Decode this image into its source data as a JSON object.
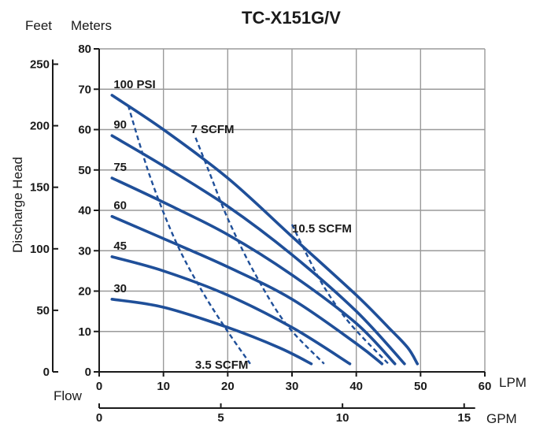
{
  "chart_data": {
    "type": "line",
    "title": "TC-X151G/V",
    "xlabel": "Flow",
    "ylabel": "Discharge Head",
    "x_unit_primary": "LPM",
    "x_unit_secondary": "GPM",
    "y_unit_primary": "Meters",
    "y_unit_secondary": "Feet",
    "xlim": [
      0,
      60
    ],
    "ylim": [
      0,
      80
    ],
    "grid": true,
    "x_ticks": [
      "0",
      "10",
      "20",
      "30",
      "40",
      "50",
      "60"
    ],
    "y_ticks": [
      "0",
      "10",
      "20",
      "30",
      "40",
      "50",
      "60",
      "70",
      "80"
    ],
    "gpm_ticks": [
      "0",
      "5",
      "10",
      "15"
    ],
    "feet_ticks": [
      "0",
      "50",
      "100",
      "150",
      "200",
      "250"
    ],
    "series": [
      {
        "name": "30",
        "x": [
          2,
          10,
          20,
          28,
          33
        ],
        "y": [
          18,
          16,
          11,
          6,
          2
        ]
      },
      {
        "name": "45",
        "x": [
          2,
          10,
          20,
          30,
          39
        ],
        "y": [
          28.5,
          25,
          19,
          11,
          2
        ]
      },
      {
        "name": "60",
        "x": [
          2,
          10,
          20,
          30,
          40,
          44
        ],
        "y": [
          38.5,
          33,
          26,
          18,
          7,
          2
        ]
      },
      {
        "name": "75",
        "x": [
          2,
          10,
          20,
          30,
          40,
          46
        ],
        "y": [
          48,
          42,
          34,
          24,
          12,
          2
        ]
      },
      {
        "name": "90",
        "x": [
          2,
          10,
          20,
          30,
          40,
          47.5
        ],
        "y": [
          58.5,
          51,
          41,
          29,
          15,
          2
        ]
      },
      {
        "name": "100 PSI",
        "x": [
          2,
          10,
          20,
          30,
          40,
          45,
          48,
          49.5
        ],
        "y": [
          68.5,
          60,
          48,
          33.5,
          19,
          11,
          6,
          2
        ]
      }
    ],
    "scfm_lines": [
      {
        "name": "3.5 SCFM",
        "x": [
          4.5,
          8,
          12,
          16,
          20,
          23.5
        ],
        "y": [
          66,
          48,
          32,
          20,
          10,
          2
        ]
      },
      {
        "name": "7 SCFM",
        "x": [
          15,
          17,
          20,
          24,
          29,
          35
        ],
        "y": [
          58,
          50,
          38,
          25,
          12,
          2
        ]
      },
      {
        "name": "10.5 SCFM",
        "x": [
          30,
          32,
          35,
          39,
          45
        ],
        "y": [
          36.5,
          30,
          21,
          12,
          2
        ]
      }
    ]
  }
}
